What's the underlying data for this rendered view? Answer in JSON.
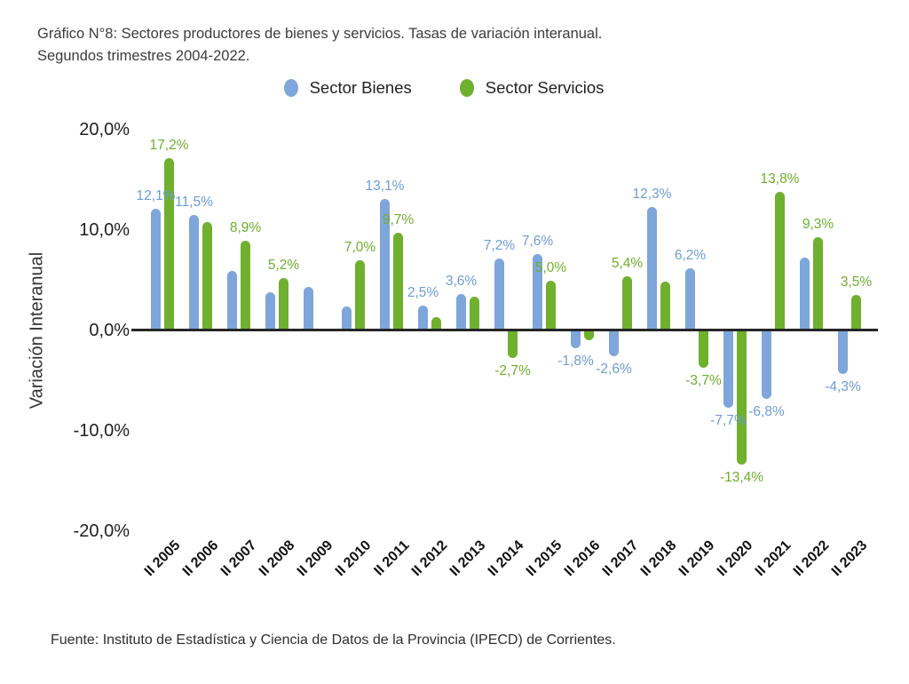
{
  "title": {
    "line1": "Gráfico N°8: Sectores productores de bienes y servicios. Tasas de variación interanual.",
    "line2": "Segundos trimestres 2004-2022."
  },
  "footer": {
    "source": "Fuente: Instituto de Estadística y Ciencia de Datos de la Provincia (IPECD) de Corrientes."
  },
  "axis": {
    "y_label": "Variación Interanual",
    "y_ticks": [
      {
        "label": "20,0%",
        "value": 20
      },
      {
        "label": "10,0%",
        "value": 10
      },
      {
        "label": "0,0%",
        "value": 0
      },
      {
        "label": "-10,0%",
        "value": -10
      },
      {
        "label": "-20,0%",
        "value": -20
      }
    ]
  },
  "colors": {
    "bienes": "#7FA6DB",
    "servicios": "#6FB02E",
    "bienes_label": "#6E9CD6",
    "servicios_label": "#6FAD2C",
    "axis_line": "#262626"
  },
  "chart_data": {
    "type": "bar",
    "title": "Gráfico N°8: Sectores productores de bienes y servicios. Tasas de variación interanual. Segundos trimestres 2004-2022.",
    "xlabel": "",
    "ylabel": "Variación Interanual",
    "ylim": [
      -20,
      20
    ],
    "grid": false,
    "legend_position": "top",
    "categories": [
      "II 2005",
      "II 2006",
      "II 2007",
      "II 2008",
      "II 2009",
      "II 2010",
      "II 2011",
      "II 2012",
      "II 2013",
      "II 2014",
      "II 2015",
      "II 2016",
      "II 2017",
      "II 2018",
      "II 2019",
      "II 2020",
      "II 2021",
      "II 2022",
      "II 2023"
    ],
    "series": [
      {
        "name": "Sector Bienes",
        "color": "#7FA6DB",
        "label_color": "#6E9CD6",
        "values": [
          12.1,
          11.5,
          5.9,
          3.8,
          4.3,
          2.4,
          13.1,
          2.5,
          3.6,
          7.2,
          7.6,
          -1.8,
          -2.6,
          12.3,
          6.2,
          -7.7,
          -6.8,
          7.3,
          -4.3
        ],
        "labels": [
          "12,1%",
          "11,5%",
          null,
          null,
          null,
          null,
          "13,1%",
          "2,5%",
          "3,6%",
          "7,2%",
          "7,6%",
          "-1,8%",
          "-2,6%",
          "12,3%",
          "6,2%",
          "-7,7%",
          "-6,8%",
          null,
          "-4,3%"
        ]
      },
      {
        "name": "Sector Servicios",
        "color": "#6FB02E",
        "label_color": "#6FAD2C",
        "values": [
          17.2,
          10.8,
          8.9,
          5.2,
          0.2,
          7.0,
          9.7,
          1.3,
          3.4,
          -2.7,
          5.0,
          -1.0,
          5.4,
          4.9,
          -3.7,
          -13.4,
          13.8,
          9.3,
          3.5
        ],
        "labels": [
          "17,2%",
          null,
          "8,9%",
          "5,2%",
          null,
          "7,0%",
          "9,7%",
          null,
          null,
          "-2,7%",
          "5,0%",
          null,
          "5,4%",
          null,
          "-3,7%",
          "-13,4%",
          "13,8%",
          "9,3%",
          "3,5%"
        ]
      }
    ]
  }
}
